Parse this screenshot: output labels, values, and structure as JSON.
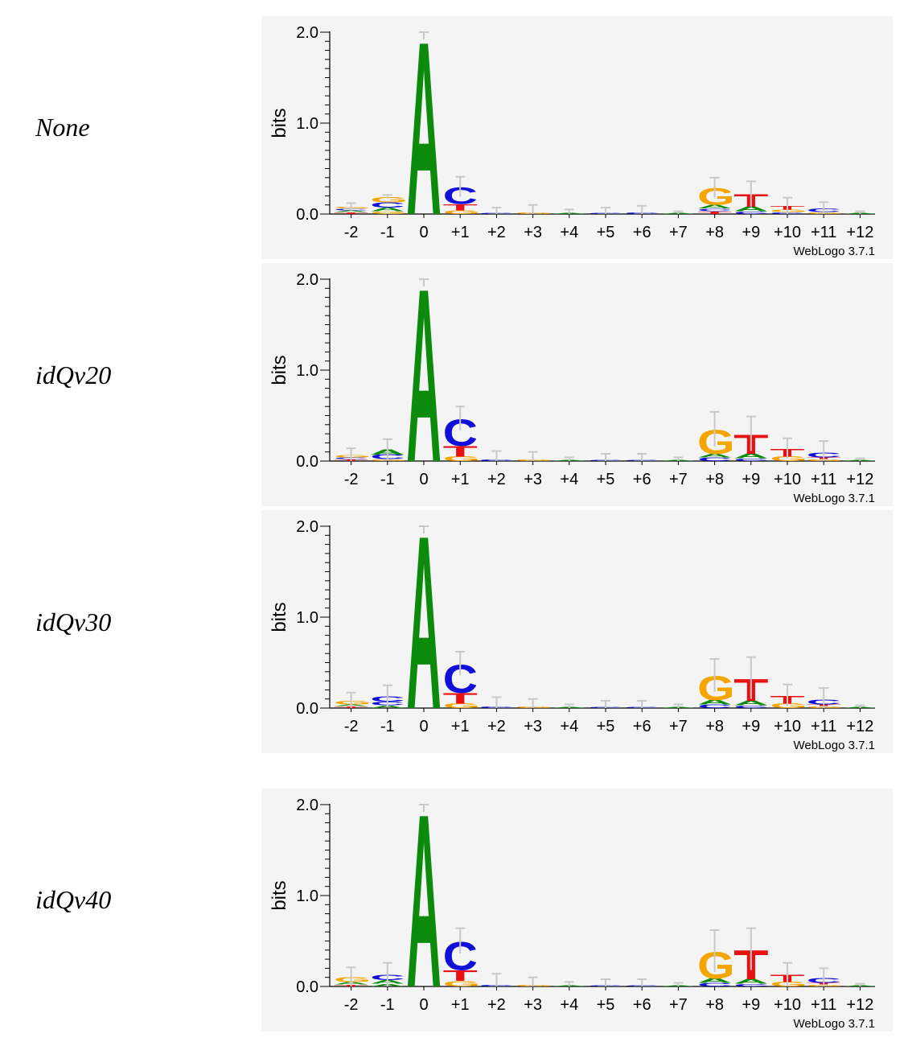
{
  "x_tick_labels": [
    "-2",
    "-1",
    "0",
    "+1",
    "+2",
    "+3",
    "+4",
    "+5",
    "+6",
    "+7",
    "+8",
    "+9",
    "+10",
    "+11",
    "+12"
  ],
  "y_tick_labels": [
    "2.0",
    "1.0",
    "0.0"
  ],
  "ylabel": "bits",
  "credit": "WebLogo 3.7.1",
  "colors": {
    "A": "#0b8a0b",
    "C": "#1010d8",
    "G": "#f5a500",
    "T": "#e81010",
    "error_bar": "#c8c8c8"
  },
  "chart_data": [
    {
      "type": "sequence-logo",
      "row_label": "None",
      "ylabel": "bits",
      "ylim": [
        0,
        2
      ],
      "positions": [
        "-2",
        "-1",
        "0",
        "+1",
        "+2",
        "+3",
        "+4",
        "+5",
        "+6",
        "+7",
        "+8",
        "+9",
        "+10",
        "+11",
        "+12"
      ],
      "stacks": [
        [
          [
            "T",
            0.02
          ],
          [
            "A",
            0.02
          ],
          [
            "C",
            0.02
          ],
          [
            "G",
            0.02
          ]
        ],
        [
          [
            "G",
            0.03
          ],
          [
            "A",
            0.04
          ],
          [
            "C",
            0.06
          ],
          [
            "G",
            0.06
          ]
        ],
        [
          [
            "A",
            1.96
          ]
        ],
        [
          [
            "G",
            0.04
          ],
          [
            "T",
            0.07
          ],
          [
            "C",
            0.19
          ]
        ],
        [
          [
            "C",
            0.01
          ]
        ],
        [
          [
            "G",
            0.02
          ]
        ],
        [
          [
            "A",
            0.01
          ]
        ],
        [
          [
            "C",
            0.01
          ]
        ],
        [
          [
            "C",
            0.02
          ]
        ],
        [
          [
            "A",
            0.01
          ]
        ],
        [
          [
            "T",
            0.03
          ],
          [
            "C",
            0.03
          ],
          [
            "A",
            0.04
          ],
          [
            "G",
            0.19
          ]
        ],
        [
          [
            "C",
            0.03
          ],
          [
            "A",
            0.05
          ],
          [
            "T",
            0.14
          ]
        ],
        [
          [
            "C",
            0.02
          ],
          [
            "G",
            0.03
          ],
          [
            "T",
            0.04
          ]
        ],
        [
          [
            "G",
            0.02
          ],
          [
            "C",
            0.04
          ]
        ],
        [
          [
            "A",
            0.01
          ]
        ]
      ],
      "error_bars": [
        0.12,
        0.21,
        2.0,
        0.41,
        0.07,
        0.1,
        0.05,
        0.07,
        0.09,
        0.03,
        0.4,
        0.36,
        0.18,
        0.13,
        0.03
      ]
    },
    {
      "type": "sequence-logo",
      "row_label": "idQv20",
      "ylabel": "bits",
      "ylim": [
        0,
        2
      ],
      "positions": [
        "-2",
        "-1",
        "0",
        "+1",
        "+2",
        "+3",
        "+4",
        "+5",
        "+6",
        "+7",
        "+8",
        "+9",
        "+10",
        "+11",
        "+12"
      ],
      "stacks": [
        [
          [
            "T",
            0.02
          ],
          [
            "C",
            0.02
          ],
          [
            "G",
            0.03
          ]
        ],
        [
          [
            "G",
            0.02
          ],
          [
            "C",
            0.05
          ],
          [
            "A",
            0.06
          ]
        ],
        [
          [
            "A",
            1.96
          ]
        ],
        [
          [
            "G",
            0.05
          ],
          [
            "T",
            0.12
          ],
          [
            "C",
            0.3
          ]
        ],
        [
          [
            "C",
            0.02
          ]
        ],
        [
          [
            "G",
            0.02
          ]
        ],
        [
          [
            "A",
            0.01
          ]
        ],
        [
          [
            "C",
            0.01
          ]
        ],
        [
          [
            "C",
            0.01
          ]
        ],
        [
          [
            "A",
            0.01
          ]
        ],
        [
          [
            "C",
            0.04
          ],
          [
            "A",
            0.04
          ],
          [
            "G",
            0.27
          ]
        ],
        [
          [
            "C",
            0.03
          ],
          [
            "A",
            0.05
          ],
          [
            "T",
            0.22
          ]
        ],
        [
          [
            "G",
            0.05
          ],
          [
            "T",
            0.09
          ]
        ],
        [
          [
            "G",
            0.02
          ],
          [
            "T",
            0.02
          ],
          [
            "C",
            0.05
          ]
        ],
        [
          [
            "A",
            0.01
          ]
        ]
      ],
      "error_bars": [
        0.14,
        0.24,
        2.0,
        0.6,
        0.11,
        0.1,
        0.04,
        0.08,
        0.08,
        0.04,
        0.54,
        0.49,
        0.25,
        0.22,
        0.03
      ]
    },
    {
      "type": "sequence-logo",
      "row_label": "idQv30",
      "ylabel": "bits",
      "ylim": [
        0,
        2
      ],
      "positions": [
        "-2",
        "-1",
        "0",
        "+1",
        "+2",
        "+3",
        "+4",
        "+5",
        "+6",
        "+7",
        "+8",
        "+9",
        "+10",
        "+11",
        "+12"
      ],
      "stacks": [
        [
          [
            "T",
            0.02
          ],
          [
            "A",
            0.02
          ],
          [
            "G",
            0.04
          ]
        ],
        [
          [
            "A",
            0.03
          ],
          [
            "C",
            0.04
          ],
          [
            "C",
            0.06
          ]
        ],
        [
          [
            "A",
            1.96
          ]
        ],
        [
          [
            "G",
            0.05
          ],
          [
            "T",
            0.12
          ],
          [
            "C",
            0.32
          ]
        ],
        [
          [
            "C",
            0.02
          ]
        ],
        [
          [
            "G",
            0.02
          ]
        ],
        [
          [
            "A",
            0.01
          ]
        ],
        [
          [
            "C",
            0.01
          ]
        ],
        [
          [
            "C",
            0.01
          ]
        ],
        [
          [
            "A",
            0.01
          ]
        ],
        [
          [
            "C",
            0.04
          ],
          [
            "A",
            0.05
          ],
          [
            "G",
            0.27
          ]
        ],
        [
          [
            "C",
            0.03
          ],
          [
            "A",
            0.05
          ],
          [
            "T",
            0.25
          ]
        ],
        [
          [
            "G",
            0.05
          ],
          [
            "T",
            0.09
          ]
        ],
        [
          [
            "G",
            0.02
          ],
          [
            "T",
            0.02
          ],
          [
            "C",
            0.05
          ]
        ],
        [
          [
            "A",
            0.01
          ]
        ]
      ],
      "error_bars": [
        0.17,
        0.25,
        2.0,
        0.62,
        0.12,
        0.1,
        0.04,
        0.08,
        0.08,
        0.04,
        0.54,
        0.56,
        0.26,
        0.22,
        0.03
      ]
    },
    {
      "type": "sequence-logo",
      "row_label": "idQv40",
      "ylabel": "bits",
      "ylim": [
        0,
        2
      ],
      "positions": [
        "-2",
        "-1",
        "0",
        "+1",
        "+2",
        "+3",
        "+4",
        "+5",
        "+6",
        "+7",
        "+8",
        "+9",
        "+10",
        "+11",
        "+12"
      ],
      "stacks": [
        [
          [
            "T",
            0.02
          ],
          [
            "A",
            0.03
          ],
          [
            "G",
            0.05
          ]
        ],
        [
          [
            "A",
            0.03
          ],
          [
            "A",
            0.04
          ],
          [
            "C",
            0.06
          ]
        ],
        [
          [
            "A",
            1.96
          ]
        ],
        [
          [
            "G",
            0.06
          ],
          [
            "T",
            0.12
          ],
          [
            "C",
            0.32
          ]
        ],
        [
          [
            "C",
            0.02
          ]
        ],
        [
          [
            "G",
            0.02
          ]
        ],
        [
          [
            "A",
            0.01
          ]
        ],
        [
          [
            "C",
            0.01
          ]
        ],
        [
          [
            "C",
            0.01
          ]
        ],
        [
          [
            "A",
            0.01
          ]
        ],
        [
          [
            "C",
            0.04
          ],
          [
            "A",
            0.05
          ],
          [
            "G",
            0.3
          ]
        ],
        [
          [
            "C",
            0.03
          ],
          [
            "A",
            0.05
          ],
          [
            "T",
            0.33
          ]
        ],
        [
          [
            "G",
            0.05
          ],
          [
            "T",
            0.08
          ]
        ],
        [
          [
            "G",
            0.02
          ],
          [
            "T",
            0.02
          ],
          [
            "C",
            0.05
          ]
        ],
        [
          [
            "A",
            0.01
          ]
        ]
      ],
      "error_bars": [
        0.21,
        0.26,
        2.0,
        0.64,
        0.14,
        0.1,
        0.05,
        0.08,
        0.08,
        0.04,
        0.62,
        0.64,
        0.26,
        0.2,
        0.03
      ]
    }
  ]
}
